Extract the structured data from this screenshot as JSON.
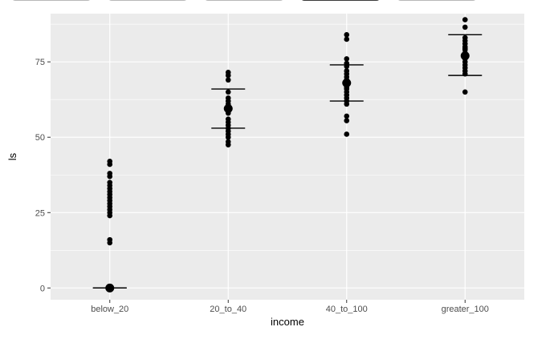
{
  "tabs": [
    {
      "id": "tab-1",
      "active": false
    },
    {
      "id": "tab-2",
      "active": false
    },
    {
      "id": "tab-3",
      "active": false
    },
    {
      "id": "tab-4",
      "active": true
    },
    {
      "id": "tab-5",
      "active": false
    }
  ],
  "chart_data": {
    "type": "scatter",
    "xlabel": "income",
    "ylabel": "ls",
    "categories": [
      "below_20",
      "20_to_40",
      "40_to_100",
      "greater_100"
    ],
    "ylim": [
      -3.9,
      91
    ],
    "yticks": [
      0,
      25,
      50,
      75
    ],
    "grid": true,
    "panel_color": "#ebebeb",
    "point_color": "#000000",
    "series": [
      {
        "category": "below_20",
        "points": [
          42,
          41,
          38,
          37,
          35,
          34,
          33,
          32,
          31,
          30,
          29,
          28,
          27,
          26,
          25,
          24,
          16,
          15,
          0,
          0,
          0,
          0,
          0,
          0,
          0,
          0
        ],
        "mean": 0,
        "lower": 0,
        "upper": 0
      },
      {
        "category": "20_to_40",
        "points": [
          71.5,
          70.5,
          69,
          65,
          63,
          62,
          61,
          60.5,
          60,
          59.5,
          59,
          58.5,
          58,
          56,
          55,
          54,
          53,
          52,
          51,
          50,
          48.5,
          47.5
        ],
        "mean": 59.5,
        "lower": 53,
        "upper": 66
      },
      {
        "category": "40_to_100",
        "points": [
          84,
          82.5,
          76,
          74.5,
          73.5,
          72,
          71,
          70,
          69,
          68,
          67.5,
          67,
          66.5,
          66,
          65,
          64,
          63,
          62,
          61,
          57,
          55.5,
          51
        ],
        "mean": 68,
        "lower": 62,
        "upper": 74
      },
      {
        "category": "greater_100",
        "points": [
          89,
          86.5,
          83,
          82,
          81,
          80,
          79.5,
          79,
          78,
          77.5,
          77,
          76.5,
          76,
          75,
          74,
          73,
          72,
          71,
          65
        ],
        "mean": 77,
        "lower": 70.5,
        "upper": 84
      }
    ]
  }
}
